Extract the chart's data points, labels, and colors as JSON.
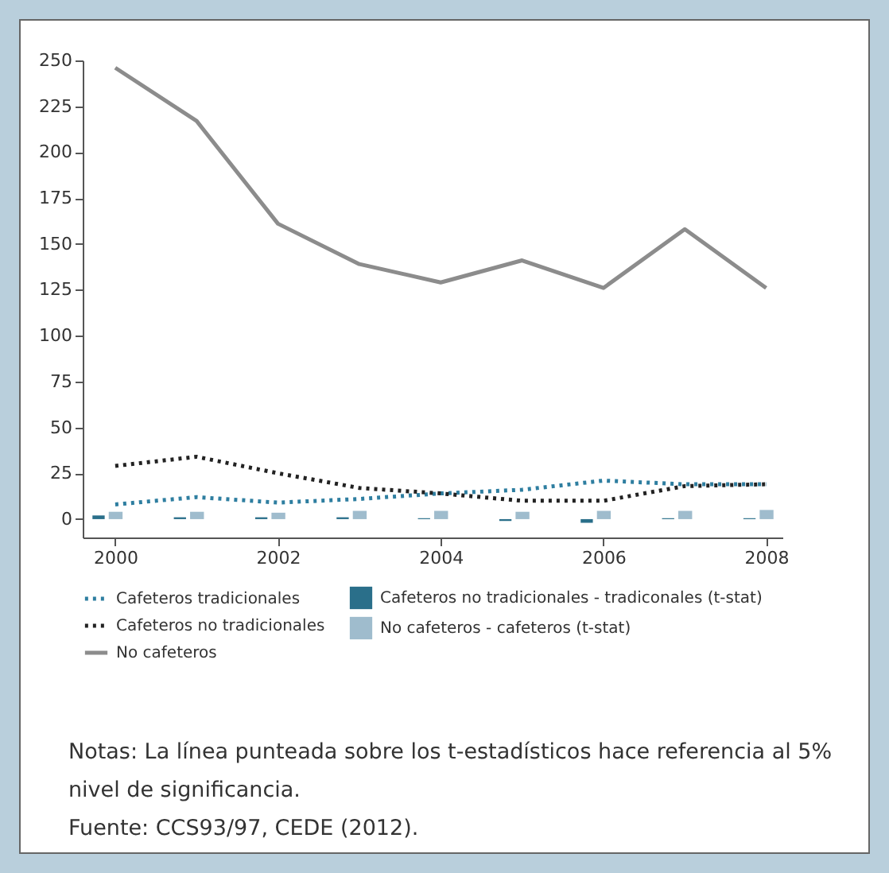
{
  "chart_data": {
    "type": "line",
    "x": [
      2000,
      2001,
      2002,
      2003,
      2004,
      2005,
      2006,
      2007,
      2008
    ],
    "xlim": [
      1999.6,
      2008.2
    ],
    "xticks": [
      2000,
      2002,
      2004,
      2006,
      2008
    ],
    "ylim": [
      -10,
      250
    ],
    "yticks": [
      0,
      25,
      50,
      75,
      100,
      125,
      150,
      175,
      200,
      225,
      250
    ],
    "grid": false,
    "legend": "bottom",
    "marker": "none",
    "series": [
      {
        "name": "Cafeteros tradicionales",
        "type": "line",
        "line_style": "dotted",
        "color": "#2e7ea0",
        "values": [
          8,
          12,
          9,
          11,
          14,
          16,
          21,
          19,
          19
        ]
      },
      {
        "name": "Cafeteros no tradicionales",
        "type": "line",
        "line_style": "dotted",
        "color": "#222222",
        "values": [
          29,
          34,
          25,
          17,
          14,
          10,
          10,
          18,
          19
        ]
      },
      {
        "name": "No cafeteros",
        "type": "line",
        "line_style": "solid",
        "color": "#8c8c8c",
        "values": [
          246,
          217,
          161,
          139,
          129,
          141,
          126,
          158,
          126
        ]
      },
      {
        "name": "Cafeteros no tradicionales - tradiconales (t-stat)",
        "type": "bar",
        "color": "#2a6f8a",
        "values": [
          2,
          1,
          1,
          1,
          0.5,
          -1,
          -2,
          0.5,
          0.5
        ]
      },
      {
        "name": "No cafeteros - cafeteros (t-stat)",
        "type": "bar",
        "color": "#9fbccd",
        "values": [
          4,
          4,
          3.5,
          4.5,
          4.5,
          4,
          4.5,
          4.5,
          5
        ]
      }
    ],
    "annotations": [
      "Notas: La línea punteada sobre los t-estadísticos hace referencia al 5% nivel de significancia.",
      "Fuente: CCS93/97, CEDE (2012)."
    ]
  }
}
